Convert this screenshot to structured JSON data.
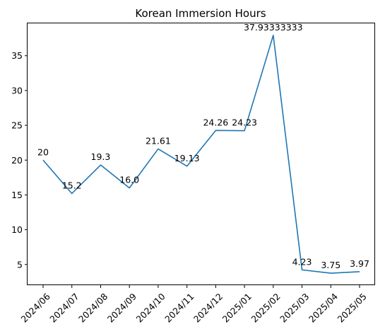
{
  "chart_data": {
    "type": "line",
    "title": "Korean Immersion Hours",
    "xlabel": "",
    "ylabel": "",
    "categories": [
      "2024/06",
      "2024/07",
      "2024/08",
      "2024/09",
      "2024/10",
      "2024/11",
      "2024/12",
      "2025/01",
      "2025/02",
      "2025/03",
      "2025/04",
      "2025/05"
    ],
    "series": [
      {
        "values": [
          20,
          15.2,
          19.3,
          16.0,
          21.61,
          19.13,
          24.26,
          24.23,
          37.93333333,
          4.23,
          3.75,
          3.97
        ]
      }
    ],
    "data_labels": [
      "20",
      "15.2",
      "19.3",
      "16.0",
      "21.61",
      "19.13",
      "24.26",
      "24.23",
      "37.93333333",
      "4.23",
      "3.75",
      "3.97"
    ],
    "yticks": [
      5,
      10,
      15,
      20,
      25,
      30,
      35
    ],
    "ylim": [
      2.03,
      39.65
    ],
    "grid": false,
    "line_color": "#1f77b4"
  }
}
